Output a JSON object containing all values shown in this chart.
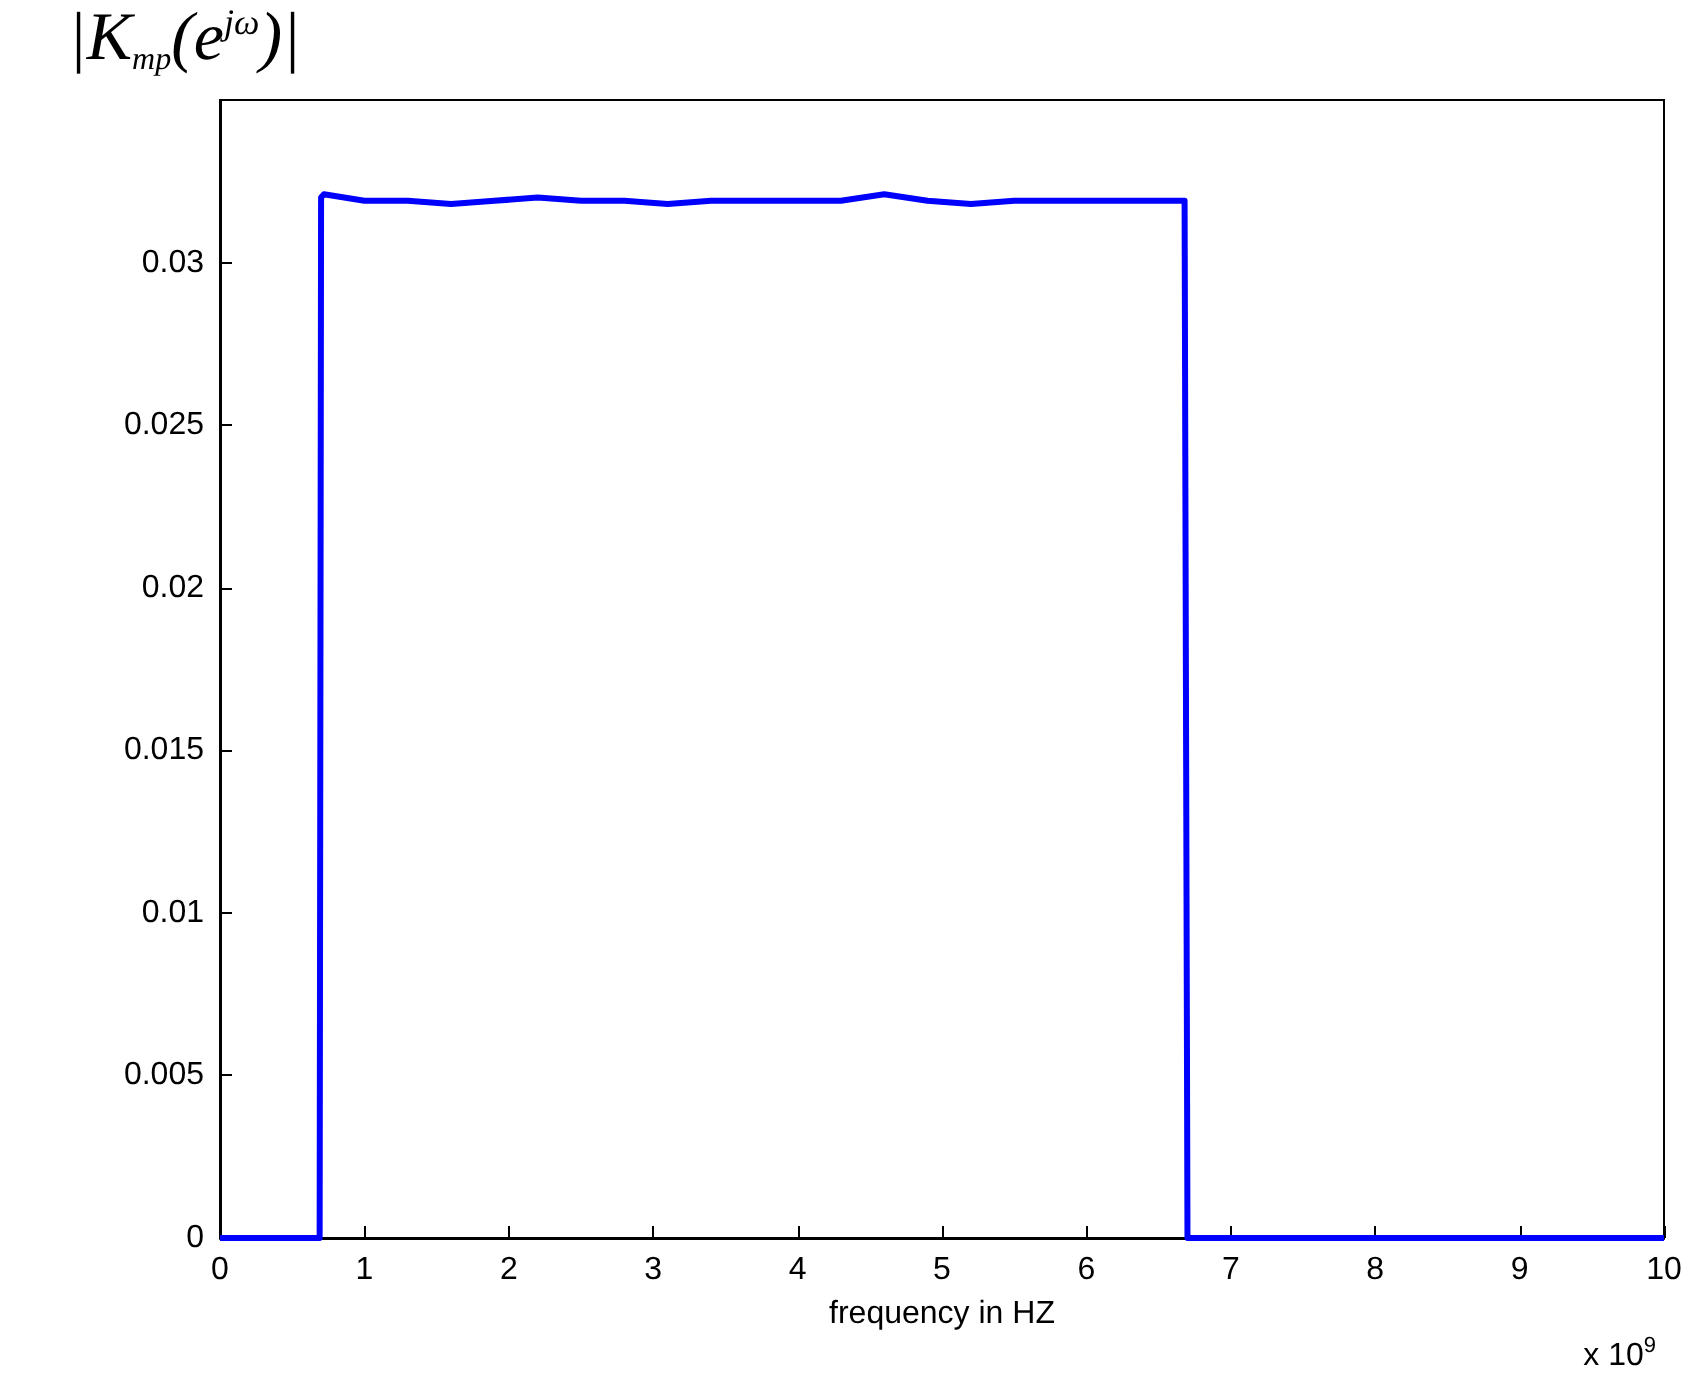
{
  "chart_data": {
    "type": "line",
    "xlabel": "frequency in HZ",
    "ylabel": "|K$_{mp}$(e$^{jω}$)|",
    "annotations": [
      "x 10$^{9}$"
    ],
    "x": [
      0,
      0.3,
      0.69,
      0.7,
      0.72,
      1.0,
      1.3,
      1.6,
      1.9,
      2.2,
      2.5,
      2.8,
      3.1,
      3.4,
      3.7,
      4.0,
      4.3,
      4.6,
      4.9,
      5.2,
      5.5,
      5.8,
      6.1,
      6.4,
      6.68,
      6.7,
      7.0,
      7.5,
      8.0,
      8.5,
      9.0,
      9.5,
      10
    ],
    "series": [
      {
        "color": "#0000ff",
        "values": [
          0,
          0,
          0,
          0.032,
          0.0321,
          0.0319,
          0.0319,
          0.0318,
          0.0319,
          0.032,
          0.0319,
          0.0319,
          0.0318,
          0.0319,
          0.0319,
          0.0319,
          0.0319,
          0.0321,
          0.0319,
          0.0318,
          0.0319,
          0.0319,
          0.0319,
          0.0319,
          0.0319,
          0,
          0,
          0,
          0,
          0,
          0,
          0,
          0
        ]
      }
    ],
    "xlim": [
      0,
      10
    ],
    "xticks": [
      0,
      1,
      2,
      3,
      4,
      5,
      6,
      7,
      8,
      9,
      10
    ],
    "ylim": [
      0,
      0.035
    ],
    "yticks": [
      0,
      0.005,
      0.01,
      0.015,
      0.02,
      0.025,
      0.03
    ]
  }
}
